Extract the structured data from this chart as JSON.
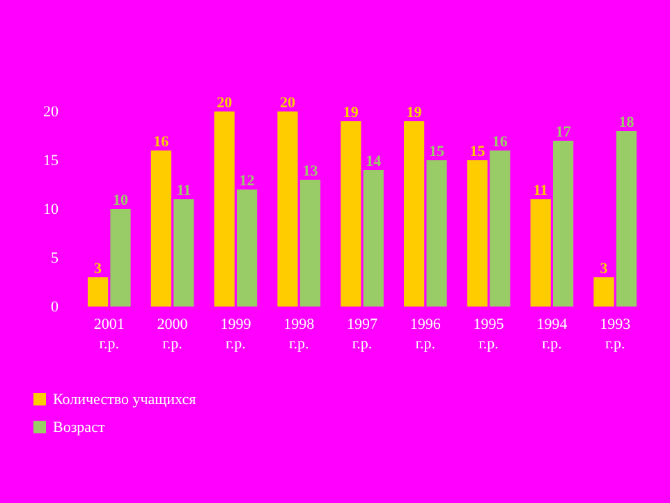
{
  "chart_data": {
    "type": "bar",
    "categories": [
      "2001 г.р.",
      "2000 г.р.",
      "1999 г.р.",
      "1998 г.р.",
      "1997 г.р.",
      "1996 г.р.",
      "1995 г.р.",
      "1994 г.р.",
      "1993 г.р."
    ],
    "series": [
      {
        "name": "Количество учащихся",
        "color": "#ffcc00",
        "values": [
          3,
          16,
          20,
          20,
          19,
          19,
          15,
          11,
          3
        ]
      },
      {
        "name": "Возраст",
        "color": "#99cc66",
        "values": [
          10,
          11,
          12,
          13,
          14,
          15,
          16,
          17,
          18
        ]
      }
    ],
    "ylim": [
      0,
      20
    ],
    "yticks": [
      0,
      5,
      10,
      15,
      20
    ],
    "data_labels": true,
    "grid": false,
    "legend": "bottom left"
  }
}
